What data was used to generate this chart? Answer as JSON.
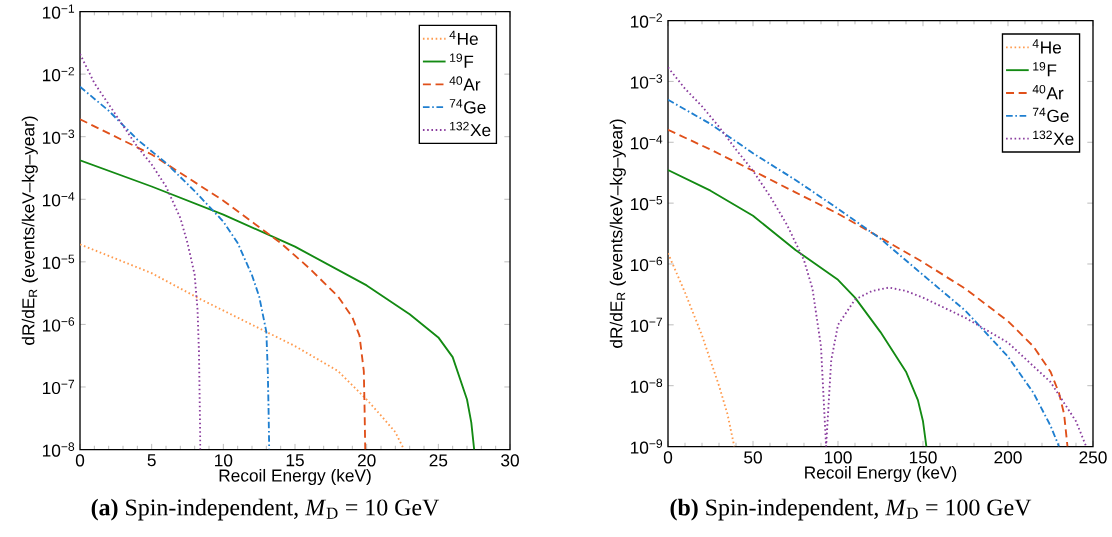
{
  "chart_data": [
    {
      "type": "line",
      "log": "y",
      "legend": "top right",
      "xlabel": "Recoil Energy (keV)",
      "ylabel": "dR/dE$_{R}$ (events/keV–kg–year)",
      "xlim": [
        0,
        30
      ],
      "ylim": [
        1e-08,
        0.1
      ],
      "xticks": [
        0,
        5,
        10,
        15,
        20,
        25,
        30
      ],
      "yticks": [
        {
          "value": 1e-08,
          "label": "10$^{−8}$"
        },
        {
          "value": 1e-07,
          "label": "10$^{−7}$"
        },
        {
          "value": 1e-06,
          "label": "10$^{−6}$"
        },
        {
          "value": 1e-05,
          "label": "10$^{−5}$"
        },
        {
          "value": 0.0001,
          "label": "10$^{−4}$"
        },
        {
          "value": 0.001,
          "label": "10$^{−3}$"
        },
        {
          "value": 0.01,
          "label": "10$^{−2}$"
        },
        {
          "value": 0.1,
          "label": "10$^{−1}$"
        }
      ],
      "annotations": [
        "**(a)** Spin-independent, *M*$_{D}$ = 10 GeV"
      ],
      "series": [
        {
          "name": "$^{4}$He",
          "color": "#ff9a4d",
          "line_style": "dotted",
          "x": [
            0,
            5,
            8.3,
            13,
            15,
            18,
            20,
            21,
            22,
            22.6
          ],
          "values": [
            1.9e-05,
            6.6e-06,
            2.6e-06,
            7.6e-07,
            4.5e-07,
            1.8e-07,
            6.3e-08,
            3.5e-08,
            1.9e-08,
            1e-08
          ]
        },
        {
          "name": "$^{19}$F",
          "color": "#138a13",
          "line_style": "solid",
          "x": [
            0,
            5,
            10,
            15,
            20,
            23,
            25,
            26,
            27,
            27.3,
            27.5
          ],
          "values": [
            0.00042,
            0.00016,
            5.7e-05,
            1.75e-05,
            4.2e-06,
            1.45e-06,
            6.2e-07,
            3e-07,
            6.3e-08,
            2.7e-08,
            1e-08
          ]
        },
        {
          "name": "$^{40}$Ar",
          "color": "#e0501a",
          "line_style": "dashed",
          "x": [
            0,
            5,
            10,
            14,
            16,
            18,
            19,
            19.5,
            19.8,
            19.85,
            19.9
          ],
          "values": [
            0.0019,
            0.00052,
            9.5e-05,
            2e-05,
            7.9e-06,
            2.8e-06,
            1.3e-06,
            6.6e-07,
            1.8e-07,
            5e-08,
            1e-08
          ]
        },
        {
          "name": "$^{74}$Ge",
          "color": "#1f7fd0",
          "line_style": "dashdot",
          "x": [
            0,
            2,
            4,
            6,
            8,
            10,
            11,
            12,
            12.5,
            13,
            13.1,
            13.15,
            13.2
          ],
          "values": [
            0.0063,
            0.0026,
            0.0009,
            0.00038,
            0.000135,
            4.4e-05,
            2e-05,
            6.1e-06,
            2.8e-06,
            7.6e-07,
            1.8e-07,
            5e-08,
            1e-08
          ]
        },
        {
          "name": "$^{132}$Xe",
          "color": "#8a3d9e",
          "line_style": "dotted",
          "x": [
            0,
            1,
            2,
            3,
            4,
            5,
            6,
            7,
            7.5,
            8,
            8.2,
            8.3,
            8.4
          ],
          "values": [
            0.021,
            0.0072,
            0.0033,
            0.0015,
            0.00069,
            0.00036,
            0.00016,
            5e-05,
            2e-05,
            6.2e-06,
            1.7e-06,
            3.5e-07,
            1e-08
          ]
        }
      ]
    },
    {
      "type": "line",
      "log": "y",
      "legend": "top right",
      "xlabel": "Recoil Energy (keV)",
      "ylabel": "dR/dE$_{R}$ (events/keV–kg–year)",
      "xlim": [
        0,
        250
      ],
      "ylim": [
        1e-09,
        0.01
      ],
      "xticks": [
        0,
        50,
        100,
        150,
        200,
        250
      ],
      "yticks": [
        {
          "value": 1e-09,
          "label": "10$^{−9}$"
        },
        {
          "value": 1e-08,
          "label": "10$^{−8}$"
        },
        {
          "value": 1e-07,
          "label": "10$^{−7}$"
        },
        {
          "value": 1e-06,
          "label": "10$^{−6}$"
        },
        {
          "value": 1e-05,
          "label": "10$^{−5}$"
        },
        {
          "value": 0.0001,
          "label": "10$^{−4}$"
        },
        {
          "value": 0.001,
          "label": "10$^{−3}$"
        },
        {
          "value": 0.01,
          "label": "10$^{−2}$"
        }
      ],
      "annotations": [
        "**(b)** Spin-independent, *M*$_{D}$ = 100 GeV"
      ],
      "series": [
        {
          "name": "$^{4}$He",
          "color": "#ff9a4d",
          "line_style": "dotted",
          "x": [
            0,
            10,
            20,
            30,
            35,
            39
          ],
          "values": [
            1.5e-06,
            3.4e-07,
            6.7e-08,
            1e-08,
            3.4e-09,
            1e-09
          ]
        },
        {
          "name": "$^{19}$F",
          "color": "#138a13",
          "line_style": "solid",
          "x": [
            0,
            25,
            50,
            75,
            100,
            110,
            125,
            140,
            147,
            150,
            152
          ],
          "values": [
            3.5e-05,
            1.6e-05,
            6.2e-06,
            1.7e-06,
            5.5e-07,
            2.8e-07,
            7.6e-08,
            1.7e-08,
            5.8e-09,
            2.6e-09,
            1e-09
          ]
        },
        {
          "name": "$^{40}$Ar",
          "color": "#e0501a",
          "line_style": "dashed",
          "x": [
            0,
            25,
            50,
            75,
            100,
            125,
            150,
            175,
            200,
            215,
            225,
            230,
            233,
            235
          ],
          "values": [
            0.00016,
            7.6e-05,
            3.4e-05,
            1.5e-05,
            6.7e-06,
            2.7e-06,
            1.07e-06,
            3.9e-07,
            1.15e-07,
            4.4e-08,
            1.7e-08,
            7.6e-09,
            3.4e-09,
            1e-09
          ]
        },
        {
          "name": "$^{74}$Ge",
          "color": "#1f7fd0",
          "line_style": "dashdot",
          "x": [
            0,
            25,
            50,
            75,
            100,
            125,
            150,
            175,
            200,
            215,
            225,
            230
          ],
          "values": [
            0.0005,
            0.0002,
            6.6e-05,
            2.4e-05,
            8.1e-06,
            2.6e-06,
            6.6e-07,
            1.7e-07,
            3e-08,
            7.6e-09,
            2.2e-09,
            1e-09
          ]
        },
        {
          "name": "$^{132}$Xe",
          "color": "#8a3d9e",
          "line_style": "dotted",
          "x": [
            0,
            10,
            20,
            30,
            40,
            50,
            60,
            70,
            80,
            85,
            90,
            93,
            96,
            100,
            110,
            120,
            130,
            140,
            150,
            175,
            200,
            225,
            240,
            246
          ],
          "values": [
            0.0017,
            0.00076,
            0.00039,
            0.00018,
            7.6e-05,
            3.4e-05,
            1.3e-05,
            4.4e-06,
            1.15e-06,
            3.9e-07,
            4.4e-08,
            1e-09,
            2.6e-08,
            1e-07,
            2.6e-07,
            3.6e-07,
            4.1e-07,
            3.6e-07,
            2.8e-07,
            1.3e-07,
            5.1e-08,
            1.15e-08,
            2.6e-09,
            1e-09
          ]
        }
      ]
    }
  ]
}
